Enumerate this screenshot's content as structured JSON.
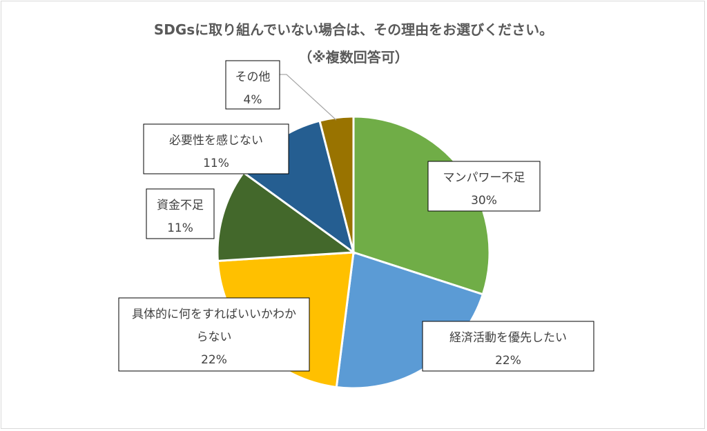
{
  "chart_data": {
    "type": "pie",
    "title": "SDGsに取り組んでいない場合は、その理由をお選びください。",
    "subtitle": "（※複数回答可）",
    "slices": [
      {
        "name": "マンパワー不足",
        "value": 30,
        "percent_label": "30%",
        "color": "#70ad47"
      },
      {
        "name": "経済活動を優先したい",
        "value": 22,
        "percent_label": "22%",
        "color": "#5b9bd5"
      },
      {
        "name": "具体的に何をすればいいかわからない",
        "value": 22,
        "percent_label": "22%",
        "color": "#ffc000"
      },
      {
        "name": "資金不足",
        "value": 11,
        "percent_label": "11%",
        "color": "#43682b"
      },
      {
        "name": "必要性を感じない",
        "value": 11,
        "percent_label": "11%",
        "color": "#255e91"
      },
      {
        "name": "その他",
        "value": 4,
        "percent_label": "4%",
        "color": "#997300"
      }
    ],
    "legend": "none"
  }
}
